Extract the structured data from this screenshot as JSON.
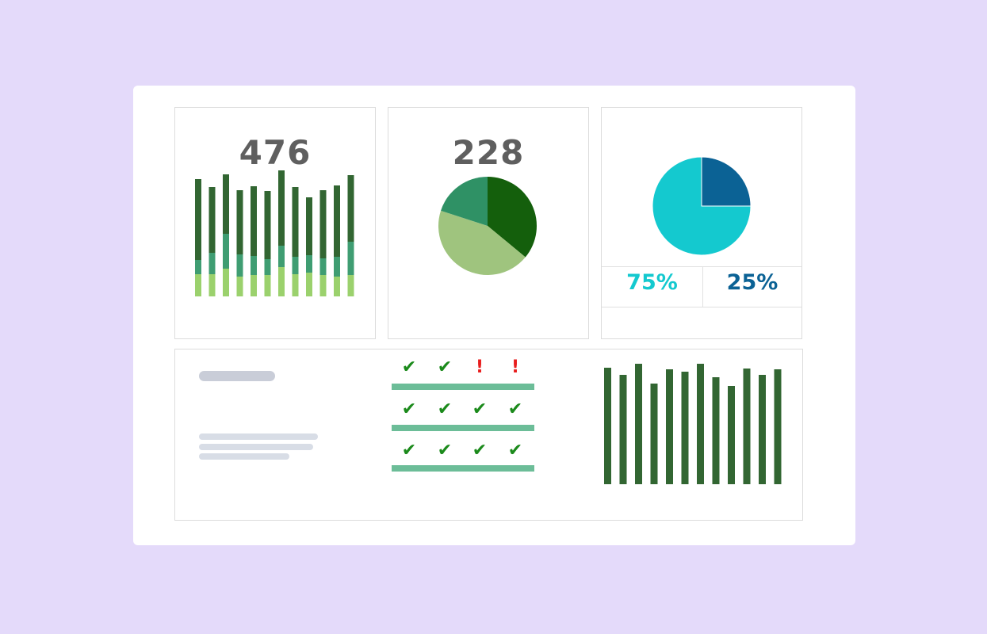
{
  "colors": {
    "background": "#e4dafa",
    "dark_green": "#326632",
    "mid_green": "#3f9d72",
    "light_green": "#9bd16d",
    "pie_dark": "#145f0c",
    "pie_mid": "#2f9165",
    "pie_light": "#9fc47e",
    "cyan": "#14c9cf",
    "navy": "#0b6295",
    "check": "#1b8a1b",
    "alert": "#e81d1d",
    "status_bar": "#6cbd98",
    "skeleton_dark": "#c9cdd8",
    "skeleton_light": "#d8dde6"
  },
  "panels": {
    "top_left": {
      "value": "476"
    },
    "top_middle": {
      "value": "228"
    },
    "top_right": {
      "left_value": "75%",
      "right_value": "25%"
    }
  },
  "chart_data": [
    {
      "type": "bar",
      "stacked": true,
      "title": "",
      "categories": [
        "",
        "",
        "",
        "",
        "",
        "",
        "",
        "",
        "",
        "",
        "",
        ""
      ],
      "series": [
        {
          "values": [
            28,
            28,
            35,
            25,
            27,
            27,
            37,
            28,
            30,
            27,
            25,
            27
          ]
        },
        {
          "values": [
            18,
            27,
            44,
            28,
            24,
            20,
            27,
            22,
            22,
            21,
            25,
            42
          ]
        },
        {
          "values": [
            102,
            83,
            75,
            81,
            88,
            86,
            95,
            88,
            73,
            86,
            90,
            84
          ]
        }
      ],
      "ylim": [
        0,
        160
      ]
    },
    {
      "type": "pie",
      "title": "",
      "values": [
        36,
        44,
        20
      ]
    },
    {
      "type": "pie",
      "title": "",
      "values": [
        75,
        25
      ],
      "labels": [
        "75%",
        "25%"
      ]
    },
    {
      "type": "bar",
      "title": "",
      "categories": [
        "",
        "",
        "",
        "",
        "",
        "",
        "",
        "",
        "",
        "",
        "",
        ""
      ],
      "values": [
        147,
        138,
        152,
        127,
        145,
        142,
        152,
        135,
        124,
        146,
        138,
        145
      ],
      "ylim": [
        0,
        160
      ]
    }
  ],
  "status_grid": {
    "rows": [
      [
        "ok",
        "ok",
        "alert",
        "alert"
      ],
      [
        "ok",
        "ok",
        "ok",
        "ok"
      ],
      [
        "ok",
        "ok",
        "ok",
        "ok"
      ]
    ],
    "check_glyph": "✔",
    "alert_glyph": "!"
  }
}
